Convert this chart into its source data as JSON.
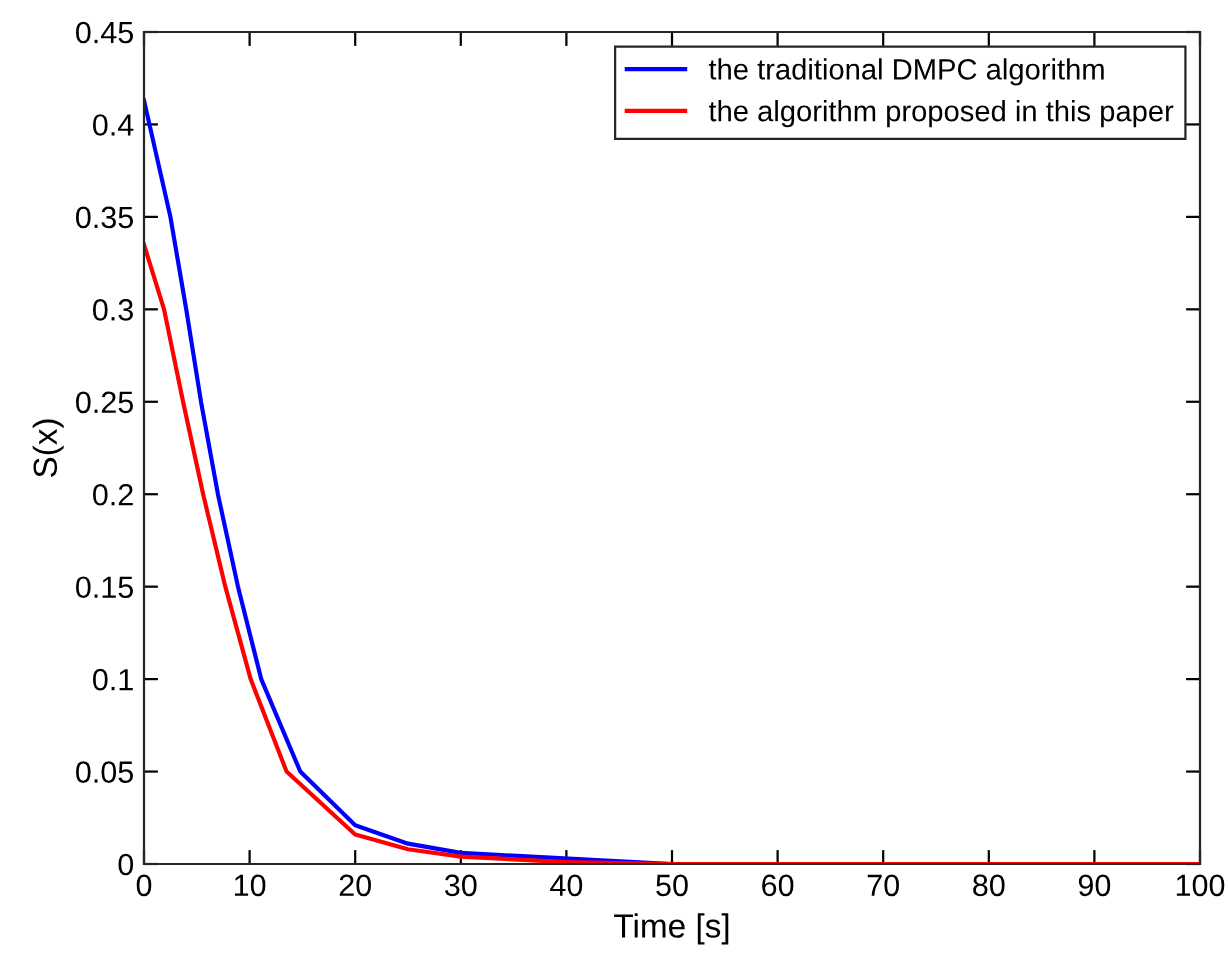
{
  "chart_data": {
    "type": "line",
    "xlabel": "Time [s]",
    "ylabel": "S(x)",
    "xlim": [
      0,
      100
    ],
    "xticks": [
      0,
      10,
      20,
      30,
      40,
      50,
      60,
      70,
      80,
      90,
      100
    ],
    "ylim": [
      0,
      0.45
    ],
    "yticks": [
      0,
      0.05,
      0.1,
      0.15,
      0.2,
      0.25,
      0.3,
      0.35,
      0.4,
      0.45
    ],
    "grid": false,
    "legend": "top right",
    "marker": "none",
    "line_style": "solid",
    "series": [
      {
        "name": "the traditional DMPC algorithm",
        "color": "#0000ff",
        "x": [
          0,
          2.5,
          4,
          5.4,
          7,
          8.9,
          11.1,
          14.8,
          20,
          25,
          30,
          50,
          100
        ],
        "values": [
          0.413,
          0.35,
          0.3,
          0.25,
          0.2,
          0.15,
          0.1,
          0.05,
          0.021,
          0.011,
          0.006,
          0,
          0
        ]
      },
      {
        "name": "the algorithm proposed in this paper",
        "color": "#ff0000",
        "x": [
          0,
          1.9,
          3.7,
          5.6,
          7.7,
          10.1,
          13.5,
          20,
          25,
          30,
          40,
          50,
          100
        ],
        "values": [
          0.335,
          0.3,
          0.25,
          0.2,
          0.15,
          0.1,
          0.05,
          0.016,
          0.008,
          0.004,
          0.001,
          0,
          0
        ]
      }
    ]
  }
}
